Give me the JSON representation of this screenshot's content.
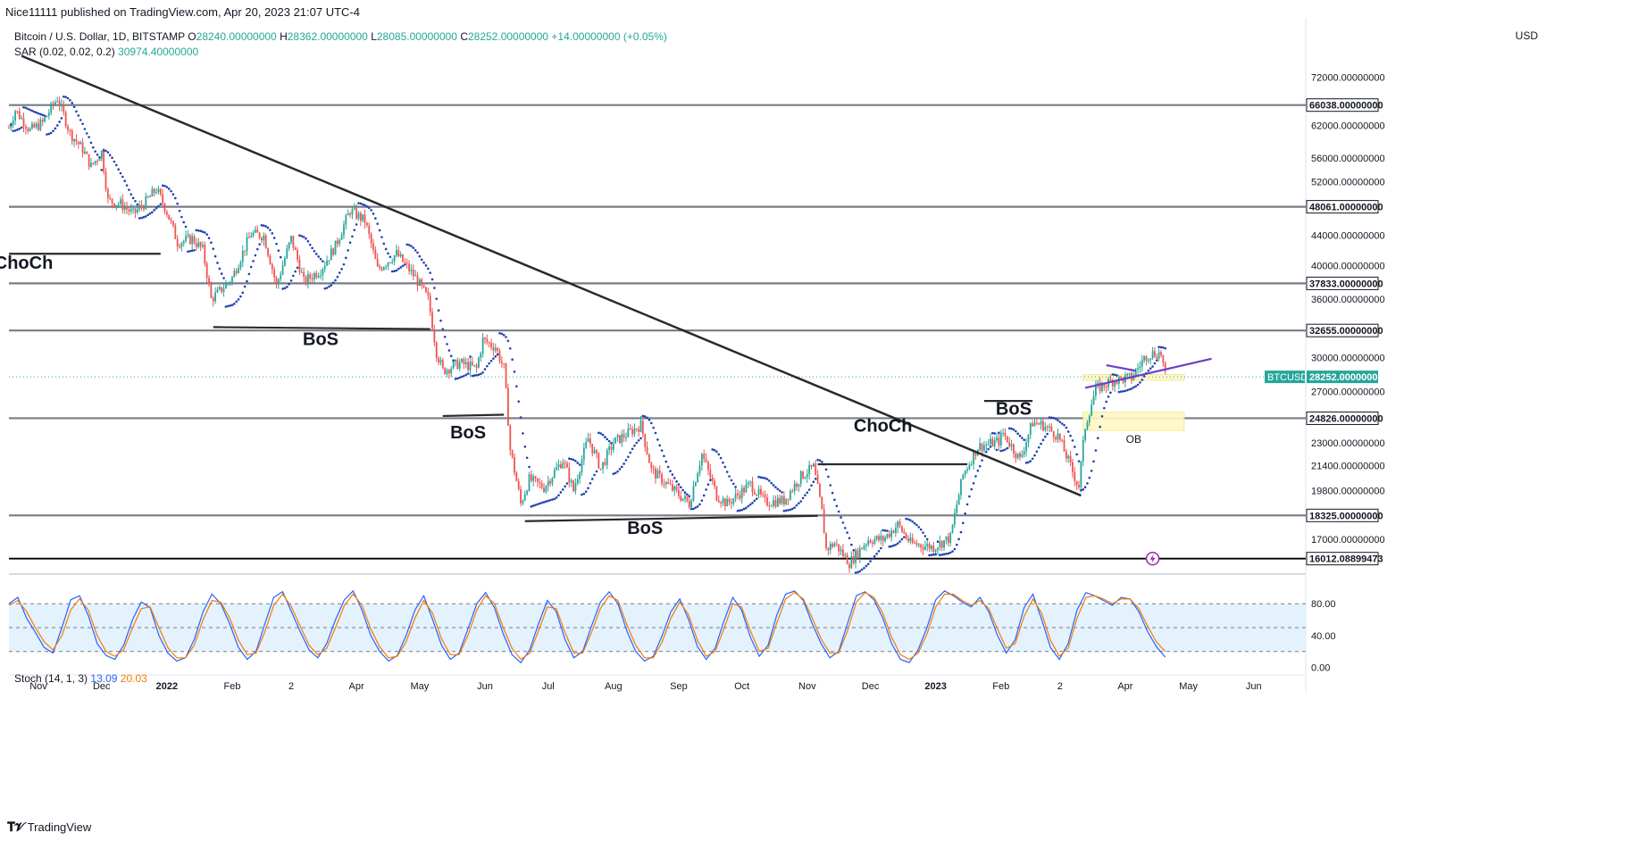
{
  "header": {
    "publisher": "Nice11111 published on TradingView.com, Apr 20, 2023 21:07 UTC-4",
    "symbol": "Bitcoin / U.S. Dollar, 1D, BITSTAMP",
    "ohlc": [
      {
        "label": "O",
        "value": "28240.00000000"
      },
      {
        "label": "H",
        "value": "28362.00000000"
      },
      {
        "label": "L",
        "value": "28085.00000000"
      },
      {
        "label": "C",
        "value": "28252.00000000"
      }
    ],
    "change": "+14.00000000 (+0.05%)",
    "sar_label": "SAR (0.02, 0.02, 0.2)",
    "sar_value": "30974.40000000",
    "currency": "USD"
  },
  "stoch_legend": {
    "label": "Stoch (14, 1, 3)",
    "k": "13.09",
    "d": "20.03"
  },
  "footer": {
    "brand": "TradingView"
  },
  "colors": {
    "up": "#26a69a",
    "down": "#ef5350",
    "sar": "#1e40af",
    "level": "#787b86",
    "trend": "#2a2a2a",
    "stoch_k": "#2962ff",
    "stoch_d": "#f57c00",
    "stoch_band": "#e3f2fd",
    "ob_zone": "#fff9c4",
    "badge": "#26a69a",
    "purple": "#6a3fc8"
  },
  "chart_data": [
    {
      "type": "candlestick",
      "title": "Bitcoin / U.S. Dollar, 1D, BITSTAMP",
      "scale": "log",
      "ylim": [
        15300,
        78000
      ],
      "xlim": [
        "2021-10-18",
        "2023-06-24"
      ],
      "y_ticks": [
        "72000.00000000",
        "62000.00000000",
        "56000.00000000",
        "52000.00000000",
        "44000.00000000",
        "40000.00000000",
        "36000.00000000",
        "30000.00000000",
        "27000.00000000",
        "23000.00000000",
        "21400.00000000",
        "19800.00000000",
        "17000.00000000"
      ],
      "x_ticks": [
        {
          "label": "Nov",
          "date": "2021-11-01"
        },
        {
          "label": "Dec",
          "date": "2021-12-01"
        },
        {
          "label": "2022",
          "date": "2022-01-01"
        },
        {
          "label": "Feb",
          "date": "2022-02-01"
        },
        {
          "label": "2",
          "date": "2022-03-01"
        },
        {
          "label": "Apr",
          "date": "2022-04-01"
        },
        {
          "label": "May",
          "date": "2022-05-01"
        },
        {
          "label": "Jun",
          "date": "2022-06-01"
        },
        {
          "label": "Jul",
          "date": "2022-07-01"
        },
        {
          "label": "Aug",
          "date": "2022-08-01"
        },
        {
          "label": "Sep",
          "date": "2022-09-01"
        },
        {
          "label": "Oct",
          "date": "2022-10-01"
        },
        {
          "label": "Nov",
          "date": "2022-11-01"
        },
        {
          "label": "Dec",
          "date": "2022-12-01"
        },
        {
          "label": "2023",
          "date": "2023-01-01"
        },
        {
          "label": "Feb",
          "date": "2023-02-01"
        },
        {
          "label": "2",
          "date": "2023-03-01"
        },
        {
          "label": "Apr",
          "date": "2023-04-01"
        },
        {
          "label": "May",
          "date": "2023-05-01"
        },
        {
          "label": "Jun",
          "date": "2023-06-01"
        }
      ],
      "price_path": [
        [
          "2021-10-18",
          61500
        ],
        [
          "2021-10-21",
          65000
        ],
        [
          "2021-10-28",
          61000
        ],
        [
          "2021-11-03",
          62500
        ],
        [
          "2021-11-10",
          67500
        ],
        [
          "2021-11-16",
          60500
        ],
        [
          "2021-11-22",
          57500
        ],
        [
          "2021-11-26",
          54500
        ],
        [
          "2021-12-01",
          57000
        ],
        [
          "2021-12-04",
          49000
        ],
        [
          "2021-12-10",
          48500
        ],
        [
          "2021-12-16",
          47000
        ],
        [
          "2021-12-22",
          48800
        ],
        [
          "2021-12-27",
          50800
        ],
        [
          "2022-01-01",
          47300
        ],
        [
          "2022-01-06",
          43000
        ],
        [
          "2022-01-13",
          43500
        ],
        [
          "2022-01-18",
          42000
        ],
        [
          "2022-01-22",
          36000
        ],
        [
          "2022-01-26",
          36900
        ],
        [
          "2022-02-01",
          38500
        ],
        [
          "2022-02-10",
          44200
        ],
        [
          "2022-02-16",
          43900
        ],
        [
          "2022-02-22",
          37500
        ],
        [
          "2022-03-01",
          43500
        ],
        [
          "2022-03-07",
          38000
        ],
        [
          "2022-03-15",
          39500
        ],
        [
          "2022-03-22",
          42500
        ],
        [
          "2022-03-29",
          47500
        ],
        [
          "2022-04-05",
          46000
        ],
        [
          "2022-04-11",
          39500
        ],
        [
          "2022-04-20",
          41500
        ],
        [
          "2022-04-29",
          38500
        ],
        [
          "2022-05-05",
          36000
        ],
        [
          "2022-05-09",
          30500
        ],
        [
          "2022-05-12",
          28800
        ],
        [
          "2022-05-20",
          29500
        ],
        [
          "2022-05-28",
          29000
        ],
        [
          "2022-05-31",
          31700
        ],
        [
          "2022-06-06",
          31000
        ],
        [
          "2022-06-10",
          29000
        ],
        [
          "2022-06-13",
          22500
        ],
        [
          "2022-06-18",
          19000
        ],
        [
          "2022-06-22",
          20500
        ],
        [
          "2022-06-29",
          20000
        ],
        [
          "2022-07-08",
          21800
        ],
        [
          "2022-07-13",
          19800
        ],
        [
          "2022-07-20",
          23300
        ],
        [
          "2022-07-26",
          21200
        ],
        [
          "2022-08-01",
          23000
        ],
        [
          "2022-08-14",
          24300
        ],
        [
          "2022-08-19",
          21100
        ],
        [
          "2022-08-28",
          20000
        ],
        [
          "2022-09-06",
          19000
        ],
        [
          "2022-09-12",
          22200
        ],
        [
          "2022-09-19",
          19500
        ],
        [
          "2022-09-24",
          19000
        ],
        [
          "2022-10-05",
          20200
        ],
        [
          "2022-10-12",
          19100
        ],
        [
          "2022-10-21",
          19200
        ],
        [
          "2022-10-29",
          20700
        ],
        [
          "2022-11-04",
          21300
        ],
        [
          "2022-11-08",
          18500
        ],
        [
          "2022-11-10",
          16500
        ],
        [
          "2022-11-14",
          16800
        ],
        [
          "2022-11-21",
          15800
        ],
        [
          "2022-11-30",
          17000
        ],
        [
          "2022-12-07",
          17000
        ],
        [
          "2022-12-14",
          17800
        ],
        [
          "2022-12-20",
          16800
        ],
        [
          "2022-12-31",
          16600
        ],
        [
          "2023-01-08",
          17100
        ],
        [
          "2023-01-14",
          20800
        ],
        [
          "2023-01-21",
          22700
        ],
        [
          "2023-01-31",
          23100
        ],
        [
          "2023-02-02",
          23700
        ],
        [
          "2023-02-10",
          21800
        ],
        [
          "2023-02-16",
          24500
        ],
        [
          "2023-02-21",
          24300
        ],
        [
          "2023-02-28",
          23500
        ],
        [
          "2023-03-09",
          20300
        ],
        [
          "2023-03-10",
          20100
        ],
        [
          "2023-03-13",
          24200
        ],
        [
          "2023-03-18",
          27200
        ],
        [
          "2023-03-26",
          27900
        ],
        [
          "2023-04-04",
          28200
        ],
        [
          "2023-04-11",
          30200
        ],
        [
          "2023-04-14",
          30400
        ],
        [
          "2023-04-18",
          30400
        ],
        [
          "2023-04-20",
          28252
        ]
      ],
      "sar_value": 30974.4,
      "levels": [
        {
          "price": "66038.00000000",
          "value": 66038
        },
        {
          "price": "48061.00000000",
          "value": 48061
        },
        {
          "price": "37833.00000000",
          "value": 37833
        },
        {
          "price": "32655.00000000",
          "value": 32655
        },
        {
          "price": "24826.00000000",
          "value": 24826
        },
        {
          "price": "18325.00000000",
          "value": 18325
        },
        {
          "price": "16012.08899473",
          "value": 16012.08899473
        }
      ],
      "last_price": {
        "symbol": "BTCUSD",
        "value": "28252.00000000",
        "num": 28252
      },
      "trendlines": [
        {
          "from": [
            "2021-10-24",
            77000
          ],
          "to": [
            "2023-03-11",
            19500
          ],
          "color": "trend"
        },
        {
          "from": [
            "2023-03-13",
            27300
          ],
          "to": [
            "2023-05-12",
            29900
          ],
          "color": "purple"
        },
        {
          "from": [
            "2023-03-23",
            29300
          ],
          "to": [
            "2023-04-06",
            28800
          ],
          "color": "purple"
        }
      ],
      "structure_lines": [
        {
          "from": [
            "2021-10-18",
            41500
          ],
          "to": [
            "2021-12-29",
            41500
          ]
        },
        {
          "from": [
            "2022-01-23",
            33000
          ],
          "to": [
            "2022-05-06",
            32800
          ]
        },
        {
          "from": [
            "2022-05-12",
            25000
          ],
          "to": [
            "2022-06-10",
            25100
          ]
        },
        {
          "from": [
            "2022-06-20",
            18000
          ],
          "to": [
            "2022-11-06",
            18300
          ]
        },
        {
          "from": [
            "2022-11-06",
            21500
          ],
          "to": [
            "2023-01-16",
            21500
          ]
        },
        {
          "from": [
            "2023-01-24",
            26200
          ],
          "to": [
            "2023-02-16",
            26200
          ]
        }
      ],
      "zones": [
        {
          "from": [
            "2023-03-12",
            28450
          ],
          "to": [
            "2023-04-29",
            27950
          ],
          "label": ""
        },
        {
          "from": [
            "2023-03-12",
            25300
          ],
          "to": [
            "2023-04-29",
            23900
          ],
          "label": "OB"
        }
      ],
      "annotations": [
        {
          "text": "ChoCh",
          "date": "2021-10-25",
          "price": 39600
        },
        {
          "text": "BoS",
          "date": "2022-03-15",
          "price": 31200
        },
        {
          "text": "BoS",
          "date": "2022-05-24",
          "price": 23300
        },
        {
          "text": "BoS",
          "date": "2022-08-16",
          "price": 17300
        },
        {
          "text": "ChoCh",
          "date": "2022-12-07",
          "price": 23800
        },
        {
          "text": "BoS",
          "date": "2023-02-07",
          "price": 25100
        }
      ]
    },
    {
      "type": "line",
      "title": "Stoch (14, 1, 3)",
      "ylim": [
        -5,
        115
      ],
      "y_ticks": [
        "80.00",
        "40.00",
        "0.00"
      ],
      "bands": {
        "upper": 80,
        "lower": 20,
        "middle": 50
      },
      "k_last": 13.09,
      "d_last": 20.03,
      "series": [
        {
          "name": "13.09",
          "color": "stoch_k",
          "values": [
            80,
            88,
            62,
            44,
            25,
            18,
            50,
            85,
            90,
            65,
            30,
            15,
            10,
            28,
            60,
            82,
            75,
            40,
            18,
            8,
            12,
            35,
            70,
            92,
            80,
            55,
            25,
            10,
            20,
            55,
            88,
            95,
            70,
            45,
            22,
            12,
            30,
            60,
            85,
            96,
            72,
            40,
            20,
            8,
            15,
            40,
            72,
            90,
            60,
            28,
            10,
            18,
            48,
            80,
            94,
            75,
            42,
            16,
            6,
            22,
            55,
            84,
            70,
            35,
            12,
            20,
            52,
            82,
            95,
            80,
            46,
            20,
            8,
            14,
            40,
            70,
            86,
            60,
            26,
            10,
            24,
            58,
            88,
            72,
            38,
            14,
            28,
            66,
            92,
            96,
            84,
            55,
            30,
            12,
            20,
            55,
            90,
            95,
            85,
            62,
            30,
            10,
            6,
            22,
            50,
            85,
            96,
            90,
            82,
            76,
            88,
            70,
            40,
            18,
            35,
            75,
            92,
            60,
            25,
            10,
            30,
            72,
            94,
            90,
            84,
            78,
            88,
            86,
            70,
            45,
            26,
            13
          ]
        },
        {
          "name": "20.03",
          "color": "stoch_d",
          "values": [
            78,
            84,
            70,
            50,
            32,
            22,
            40,
            72,
            86,
            72,
            40,
            20,
            14,
            22,
            50,
            74,
            76,
            50,
            25,
            12,
            12,
            28,
            60,
            84,
            82,
            62,
            34,
            16,
            18,
            45,
            78,
            92,
            76,
            52,
            28,
            16,
            24,
            50,
            78,
            92,
            78,
            48,
            26,
            12,
            14,
            32,
            62,
            84,
            68,
            36,
            16,
            16,
            40,
            72,
            90,
            80,
            50,
            24,
            10,
            18,
            46,
            76,
            74,
            44,
            18,
            18,
            44,
            74,
            90,
            84,
            54,
            28,
            12,
            12,
            32,
            62,
            82,
            66,
            34,
            14,
            20,
            48,
            80,
            76,
            46,
            20,
            24,
            56,
            86,
            94,
            86,
            62,
            36,
            18,
            18,
            46,
            82,
            94,
            88,
            68,
            38,
            16,
            10,
            18,
            42,
            76,
            92,
            92,
            84,
            78,
            84,
            74,
            48,
            24,
            30,
            64,
            86,
            68,
            34,
            14,
            24,
            62,
            88,
            90,
            86,
            80,
            86,
            86,
            74,
            52,
            32,
            20
          ]
        }
      ]
    }
  ]
}
